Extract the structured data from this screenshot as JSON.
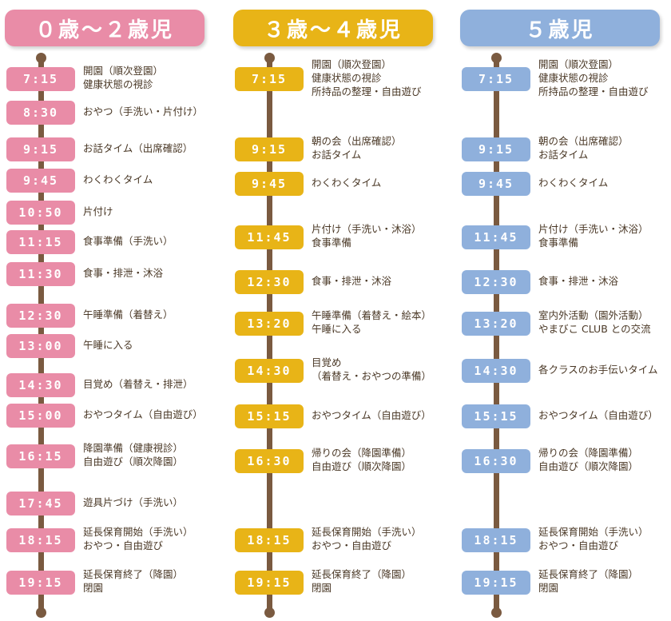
{
  "colors": {
    "pink": "#e98ca7",
    "yellow": "#e8b417",
    "blue": "#8fb0dc",
    "pole": "#7a5a40",
    "text": "#4a3826"
  },
  "columns": [
    {
      "title": "０歳～２歳児",
      "color": "#e98ca7",
      "items": [
        {
          "time": "7:15",
          "text": "開園（順次登園）\n健康状態の視診"
        },
        {
          "time": "8:30",
          "text": "おやつ（手洗い・片付け）"
        },
        {
          "time": "9:15",
          "text": "お話タイム（出席確認）"
        },
        {
          "time": "9:45",
          "text": "わくわくタイム"
        },
        {
          "time": "10:50",
          "text": "片付け"
        },
        {
          "time": "11:15",
          "text": "食事準備（手洗い）"
        },
        {
          "time": "11:30",
          "text": "食事・排泄・沐浴"
        },
        {
          "time": "12:30",
          "text": "午睡準備（着替え）"
        },
        {
          "time": "13:00",
          "text": "午睡に入る"
        },
        {
          "time": "14:30",
          "text": "目覚め（着替え・排泄）"
        },
        {
          "time": "15:00",
          "text": "おやつタイム（自由遊び）"
        },
        {
          "time": "16:15",
          "text": "降園準備（健康視診）\n自由遊び（順次降園）"
        },
        {
          "time": "17:45",
          "text": "遊具片づけ（手洗い）"
        },
        {
          "time": "18:15",
          "text": "延長保育開始（手洗い）\nおやつ・自由遊び"
        },
        {
          "time": "19:15",
          "text": "延長保育終了（降園）\n閉園"
        }
      ]
    },
    {
      "title": "３歳～４歳児",
      "color": "#e8b417",
      "items": [
        {
          "time": "7:15",
          "text": "開園（順次登園）\n健康状態の視診\n所持品の整理・自由遊び"
        },
        {
          "time": "9:15",
          "text": "朝の会（出席確認）\nお話タイム"
        },
        {
          "time": "9:45",
          "text": "わくわくタイム"
        },
        {
          "time": "11:45",
          "text": "片付け（手洗い・沐浴）\n食事準備"
        },
        {
          "time": "12:30",
          "text": "食事・排泄・沐浴"
        },
        {
          "time": "13:20",
          "text": "午睡準備（着替え・絵本）\n午睡に入る"
        },
        {
          "time": "14:30",
          "text": "目覚め\n（着替え・おやつの準備）"
        },
        {
          "time": "15:15",
          "text": "おやつタイム（自由遊び）"
        },
        {
          "time": "16:30",
          "text": "帰りの会（降園準備）\n自由遊び（順次降園）"
        },
        {
          "time": "18:15",
          "text": "延長保育開始（手洗い）\nおやつ・自由遊び"
        },
        {
          "time": "19:15",
          "text": "延長保育終了（降園）\n閉園"
        }
      ]
    },
    {
      "title": "５歳児",
      "color": "#8fb0dc",
      "items": [
        {
          "time": "7:15",
          "text": "開園（順次登園）\n健康状態の視診\n所持品の整理・自由遊び"
        },
        {
          "time": "9:15",
          "text": "朝の会（出席確認）\nお話タイム"
        },
        {
          "time": "9:45",
          "text": "わくわくタイム"
        },
        {
          "time": "11:45",
          "text": "片付け（手洗い・沐浴）\n食事準備"
        },
        {
          "time": "12:30",
          "text": "食事・排泄・沐浴"
        },
        {
          "time": "13:20",
          "text": "室内外活動（園外活動）\nやまびこ CLUB との交流"
        },
        {
          "time": "14:30",
          "text": "各クラスのお手伝いタイム"
        },
        {
          "time": "15:15",
          "text": "おやつタイム（自由遊び）"
        },
        {
          "time": "16:30",
          "text": "帰りの会（降園準備）\n自由遊び（順次降園）"
        },
        {
          "time": "18:15",
          "text": "延長保育開始（手洗い）\nおやつ・自由遊び"
        },
        {
          "time": "19:15",
          "text": "延長保育終了（降園）\n閉園"
        }
      ]
    }
  ]
}
